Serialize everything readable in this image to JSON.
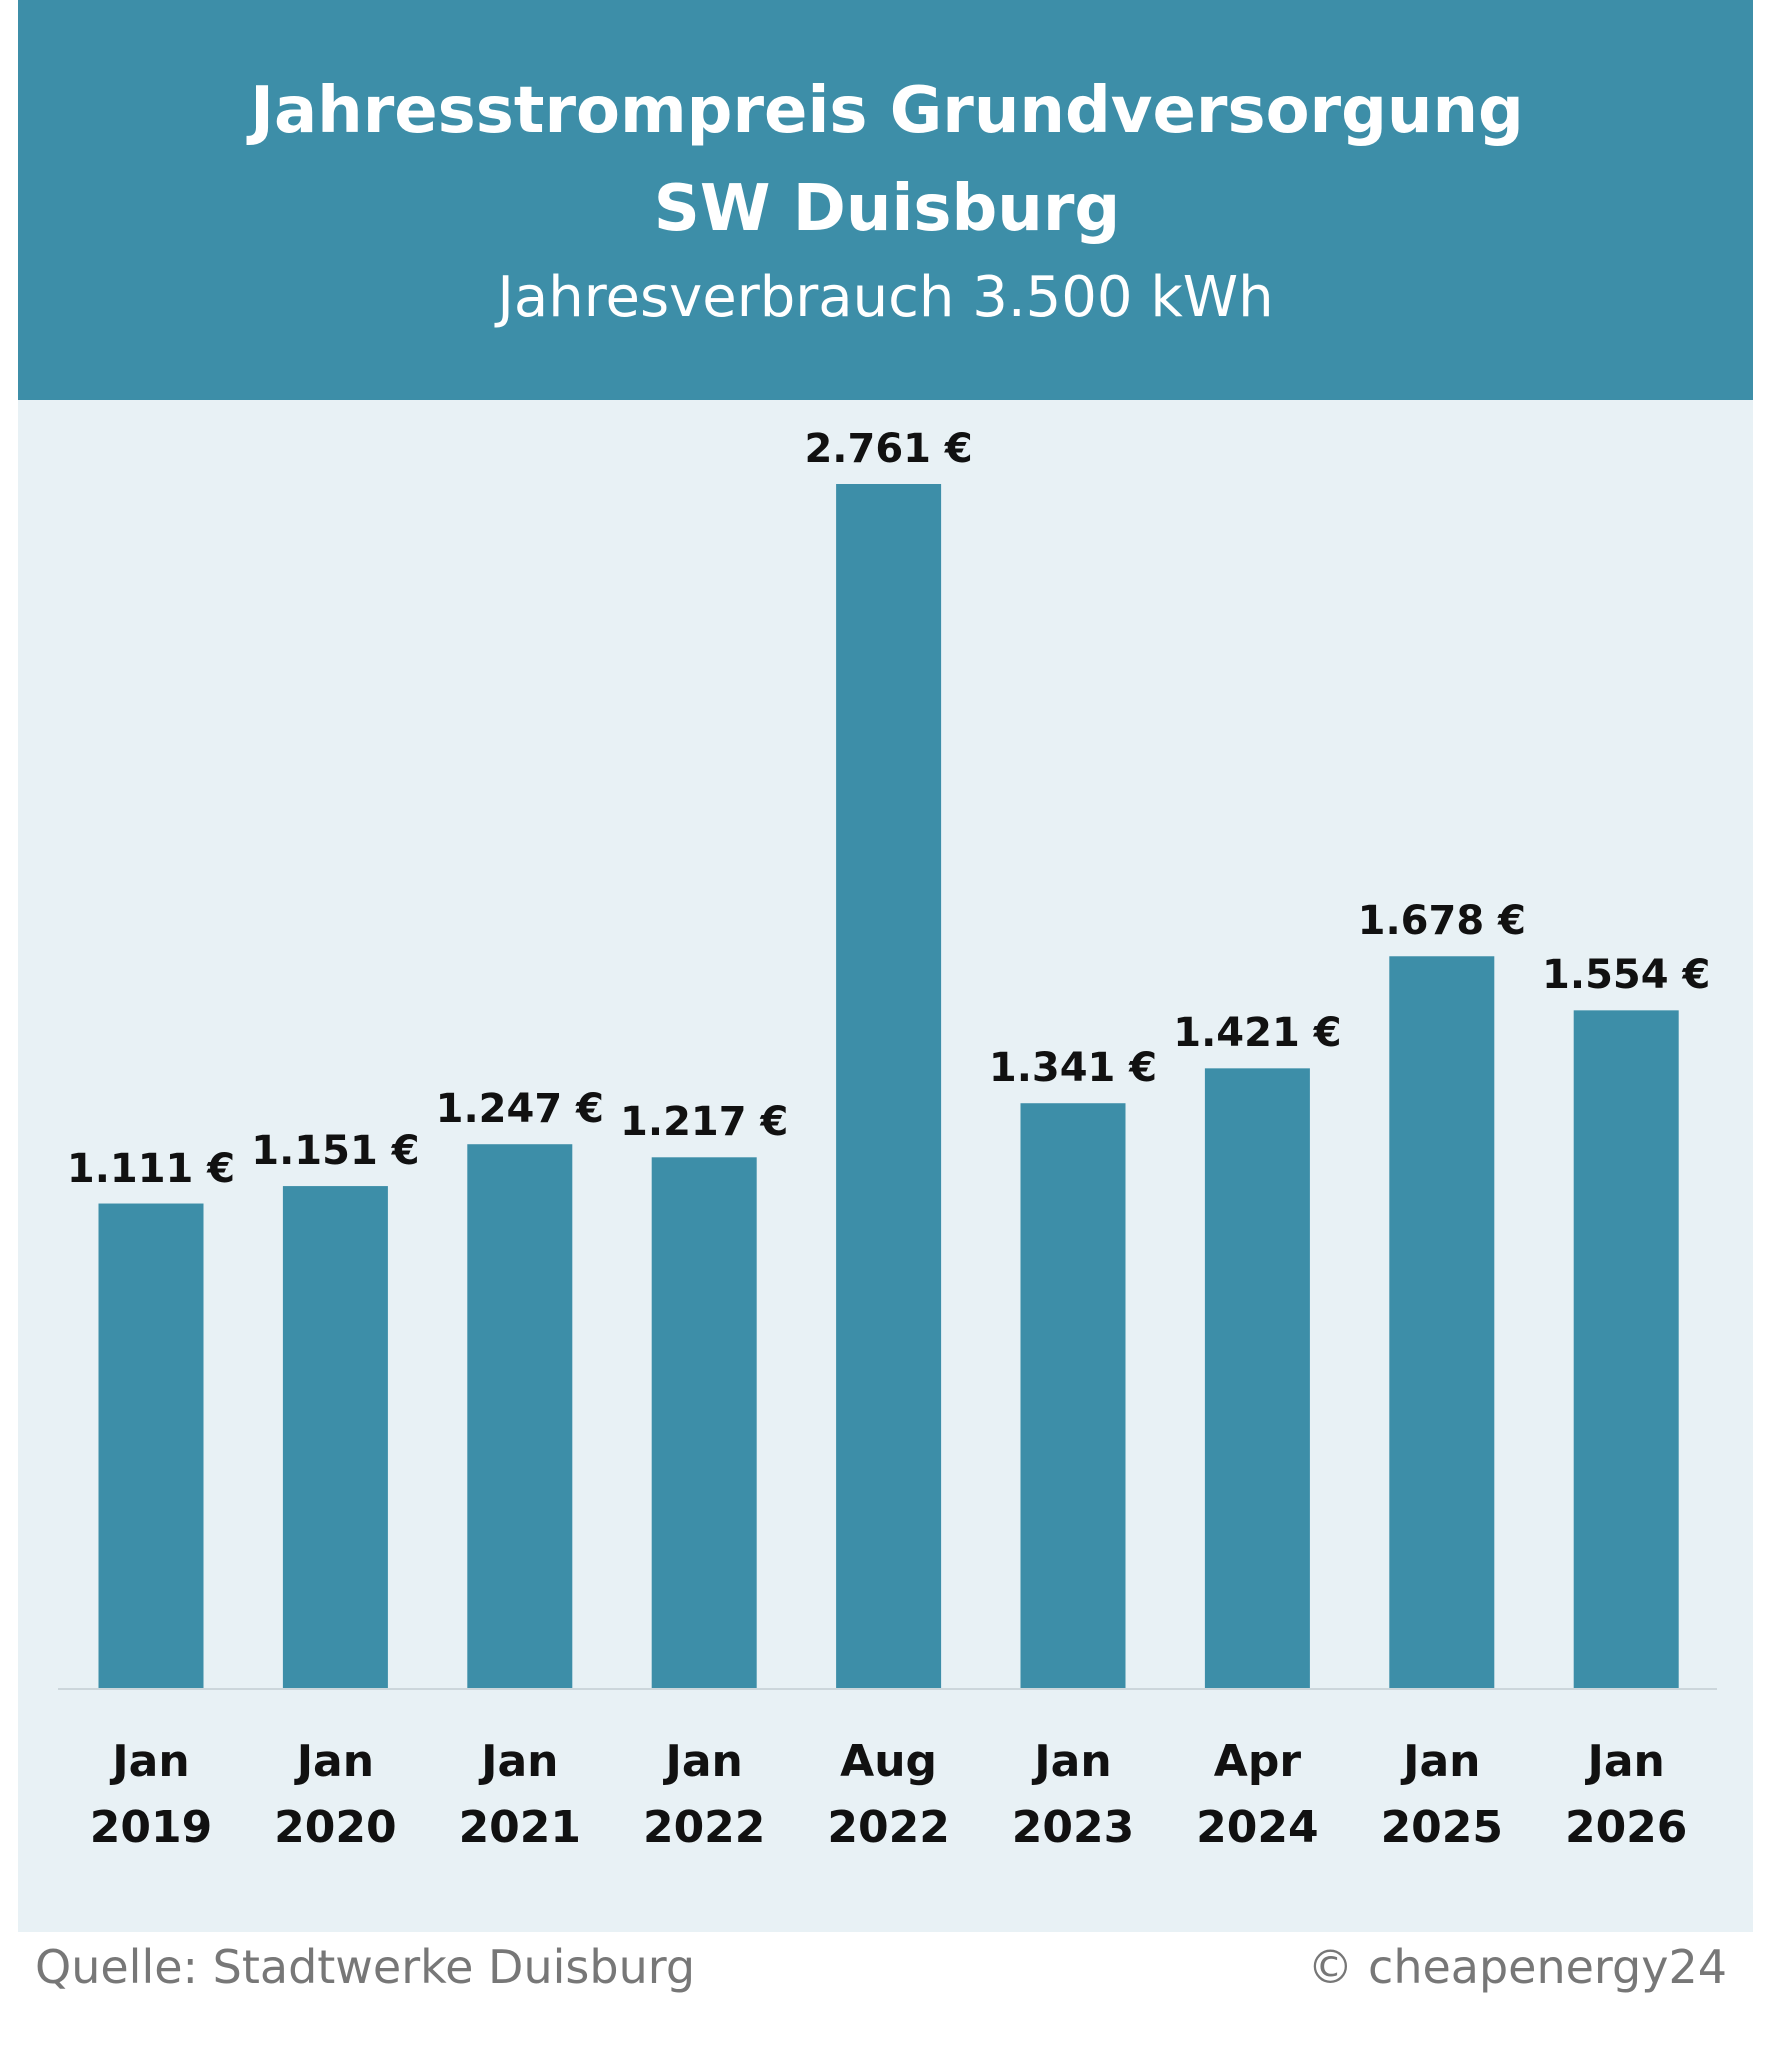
{
  "chart_data": {
    "type": "bar",
    "title": "Jahresstrompreis Grundversorgung SW Duisburg",
    "subtitle": "Jahresverbrauch 3.500 kWh",
    "categories": [
      "Jan 2019",
      "Jan 2020",
      "Jan 2021",
      "Jan 2022",
      "Aug 2022",
      "Jan 2023",
      "Apr 2024",
      "Jan 2025",
      "Jan 2026"
    ],
    "values": [
      1111,
      1151,
      1247,
      1217,
      2761,
      1341,
      1421,
      1678,
      1554
    ],
    "value_labels": [
      "1.111 €",
      "1.151 €",
      "1.247 €",
      "1.217 €",
      "2.761 €",
      "1.341 €",
      "1.421 €",
      "1.678 €",
      "1.554 €"
    ],
    "color": "#3d8ea8",
    "source": "Quelle: Stadtwerke Duisburg",
    "credit": "© cheapenergy24"
  }
}
